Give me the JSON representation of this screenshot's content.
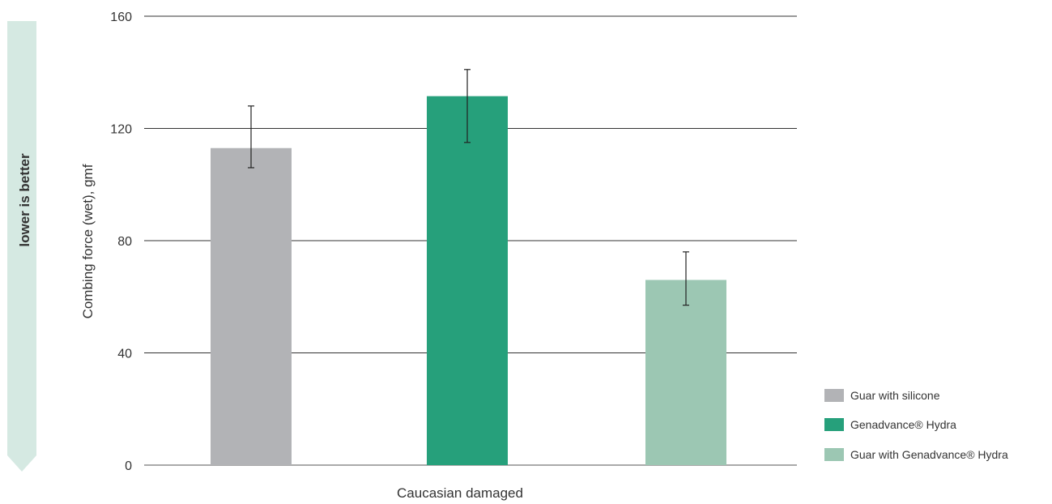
{
  "indicator": {
    "label": "lower is better",
    "color": "#d5e9e2"
  },
  "chart_data": {
    "type": "bar",
    "title": "",
    "xlabel": "Caucasian damaged",
    "ylabel": "Combing force (wet), gmf",
    "ylim": [
      0,
      160
    ],
    "yticks": [
      0,
      40,
      80,
      120,
      160
    ],
    "ytick_labels": [
      "0",
      "40",
      "80",
      "120",
      "160"
    ],
    "grid": true,
    "legend_position": "right",
    "categories": [
      "Caucasian damaged"
    ],
    "series": [
      {
        "name": "Guar with silicone",
        "value": 113,
        "error_low": 106,
        "error_high": 128,
        "color": "#b2b3b6"
      },
      {
        "name": "Genadvance® Hydra",
        "value": 131.5,
        "error_low": 115,
        "error_high": 141,
        "color": "#26a07b"
      },
      {
        "name": "Guar with Genadvance® Hydra",
        "value": 66,
        "error_low": 57,
        "error_high": 76,
        "color": "#9cc7b3"
      }
    ]
  }
}
